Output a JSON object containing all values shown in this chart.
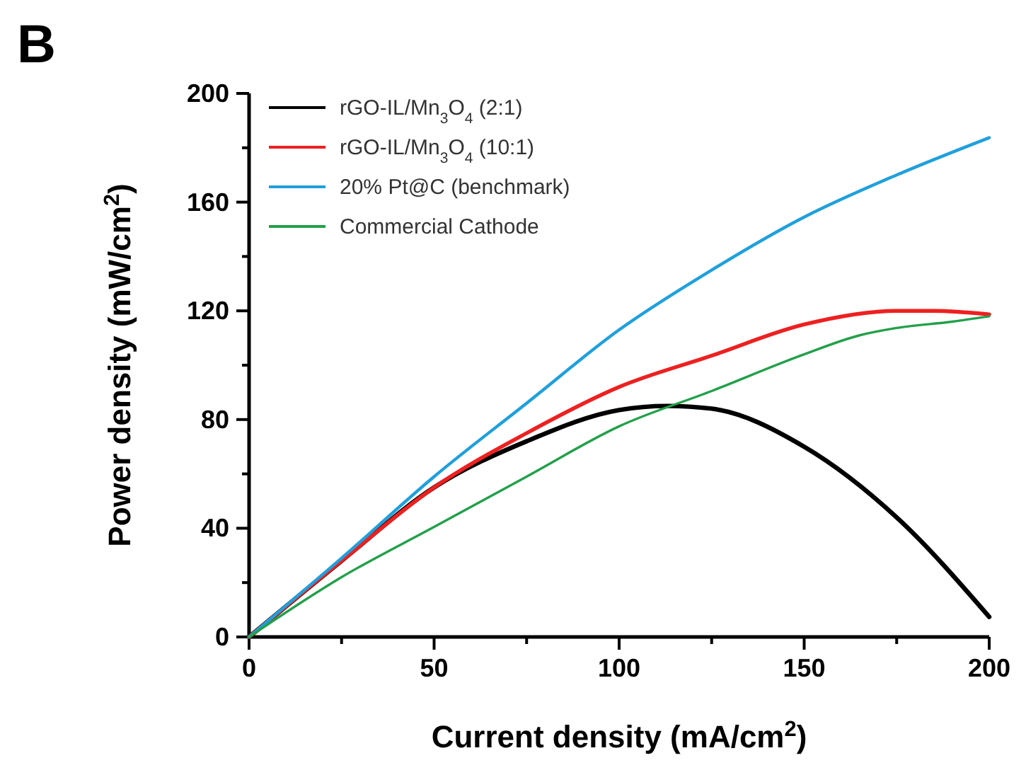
{
  "chart_data": {
    "type": "line",
    "xlabel": "Current density (mA/cm$^{2}$)",
    "ylabel": "Power density (mW/cm$^{2}$)",
    "annotations": [
      "B"
    ],
    "xlim": [
      0,
      200
    ],
    "ylim": [
      0,
      200
    ],
    "xticks": [
      0,
      {
        "value": 25,
        "label": null
      },
      50,
      {
        "value": 75,
        "label": null
      },
      100,
      {
        "value": 125,
        "label": null
      },
      150,
      {
        "value": 175,
        "label": null
      },
      200
    ],
    "yticks": [
      0,
      {
        "value": 20,
        "label": null
      },
      40,
      {
        "value": 60,
        "label": null
      },
      80,
      {
        "value": 100,
        "label": null
      },
      120,
      {
        "value": 140,
        "label": null
      },
      160,
      {
        "value": 180,
        "label": null
      },
      200
    ],
    "legend": "top left",
    "grid": false,
    "marker": "none",
    "line_style": "solid",
    "series": [
      {
        "name": "rGO-IL/Mn$_{3}$O$_{4}$ (2:1)",
        "color": "#000000",
        "x": [
          0,
          25,
          50,
          75,
          100,
          113,
          125,
          150,
          175,
          200
        ],
        "values": [
          0,
          28,
          55,
          72,
          83.5,
          85,
          84,
          70,
          44,
          7.4
        ]
      },
      {
        "name": "rGO-IL/Mn$_{3}$O$_{4}$ (10:1)",
        "color": "#ee2020",
        "x": [
          0,
          25,
          50,
          75,
          100,
          125,
          150,
          175,
          185,
          200
        ],
        "values": [
          0,
          28,
          55,
          75,
          92,
          103.5,
          115,
          120,
          120,
          118.7
        ]
      },
      {
        "name": "20% Pt@C (benchmark)",
        "color": "#1fa0dc",
        "x": [
          0,
          25,
          50,
          75,
          100,
          125,
          150,
          175,
          200
        ],
        "values": [
          0,
          29,
          59,
          86,
          113,
          135,
          154.5,
          170,
          183.7
        ]
      },
      {
        "name": "Commercial Cathode",
        "color": "#22a04a",
        "x": [
          0,
          25,
          50,
          75,
          100,
          125,
          150,
          165,
          175,
          190,
          200
        ],
        "values": [
          0,
          22,
          40.5,
          59,
          77.5,
          90.5,
          104,
          111,
          113.7,
          116,
          118
        ]
      }
    ]
  }
}
